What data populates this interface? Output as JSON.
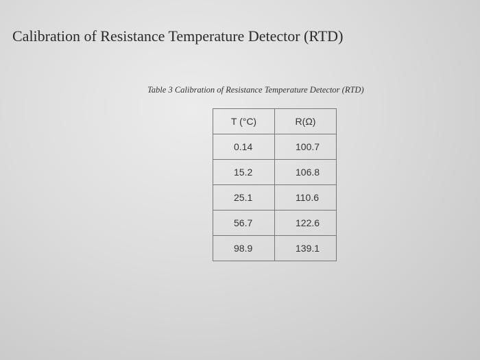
{
  "heading": "Calibration of Resistance Temperature Detector (RTD)",
  "table": {
    "caption": "Table 3 Calibration of Resistance Temperature Detector (RTD)",
    "headers": [
      "T (°C)",
      "R(Ω)"
    ],
    "rows": [
      [
        0.14,
        100.7
      ],
      [
        15.2,
        106.8
      ],
      [
        25.1,
        110.6
      ],
      [
        56.7,
        122.6
      ],
      [
        98.9,
        139.1
      ]
    ]
  }
}
